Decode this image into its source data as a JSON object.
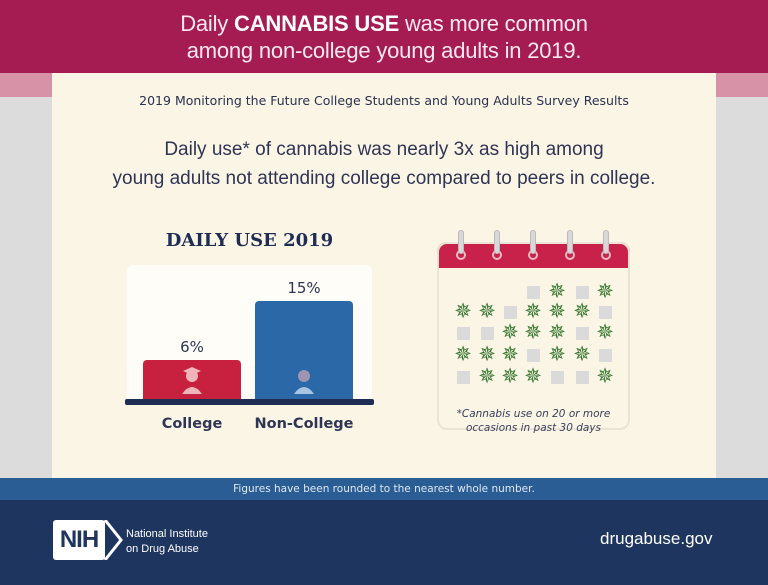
{
  "header": {
    "title_pre": "Daily ",
    "title_bold": "CANNABIS USE",
    "title_post": " was more common",
    "title_line2": "among non-college young adults in 2019."
  },
  "survey_title": "2019 Monitoring the Future College Students and Young Adults Survey Results",
  "headline_line1": "Daily use* of cannabis was nearly 3x as high among",
  "headline_line2": "young adults not attending college compared to peers in college.",
  "chart_data": {
    "type": "bar",
    "title": "DAILY USE 2019",
    "categories": [
      "College",
      "Non-College"
    ],
    "values": [
      6,
      15
    ],
    "value_labels": [
      "6%",
      "15%"
    ],
    "colors": [
      "#c8213f",
      "#2b68a8"
    ],
    "icons": [
      "graduate-icon",
      "person-icon"
    ],
    "ylim": [
      0,
      15
    ],
    "grid": false
  },
  "calendar": {
    "icon": "calendar-icon",
    "days": [
      "",
      "",
      "",
      "e",
      "l",
      "e",
      "l",
      "l",
      "l",
      "e",
      "l",
      "l",
      "l",
      "e",
      "e",
      "e",
      "l",
      "l",
      "l",
      "e",
      "l",
      "l",
      "l",
      "l",
      "e",
      "l",
      "l",
      "e",
      "e",
      "l",
      "l",
      "l",
      "e",
      "e",
      "l"
    ],
    "note_line1": "*Cannabis use on 20 or more",
    "note_line2": "occasions in past 30 days"
  },
  "rounding_note": "Figures have been rounded to the nearest whole number.",
  "footer": {
    "logo": "NIH",
    "org_line1": "National Institute",
    "org_line2": "on Drug Abuse",
    "site": "drugabuse.gov"
  },
  "colors": {
    "banner": "#a51c52",
    "panel": "#fbf5e6",
    "strip": "#2a5d94",
    "footer": "#1e3560"
  }
}
